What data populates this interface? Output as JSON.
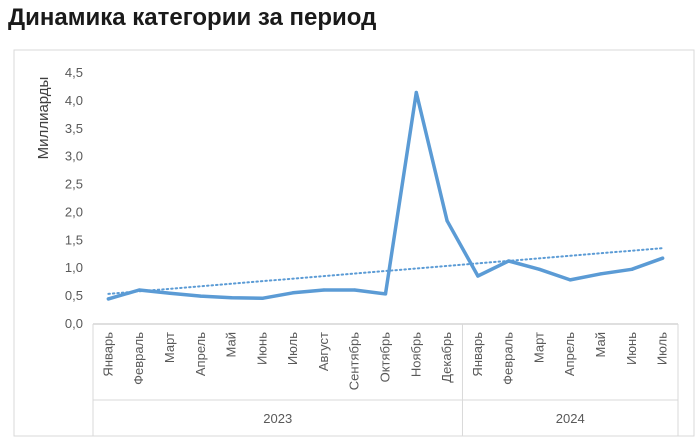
{
  "page": {
    "title": "Динамика категории за период"
  },
  "chart_data": {
    "type": "line",
    "title": "Динамика категории за период",
    "ylabel": "Миллиарды",
    "xlabel": "",
    "ylim": [
      0,
      4.5
    ],
    "ytick_step": 0.5,
    "ytick_labels": [
      "0,0",
      "0,5",
      "1,0",
      "1,5",
      "2,0",
      "2,5",
      "3,0",
      "3,5",
      "4,0",
      "4,5"
    ],
    "grid": false,
    "legend": "none",
    "groups": [
      {
        "label": "2023",
        "categories": [
          "Январь",
          "Февраль",
          "Март",
          "Апрель",
          "Май",
          "Июнь",
          "Июль",
          "Август",
          "Сентябрь",
          "Октябрь",
          "Ноябрь",
          "Декабрь"
        ]
      },
      {
        "label": "2024",
        "categories": [
          "Январь",
          "Февраль",
          "Март",
          "Апрель",
          "Май",
          "Июнь",
          "Июль"
        ]
      }
    ],
    "categories": [
      "Январь",
      "Февраль",
      "Март",
      "Апрель",
      "Май",
      "Июнь",
      "Июль",
      "Август",
      "Сентябрь",
      "Октябрь",
      "Ноябрь",
      "Декабрь",
      "Январь",
      "Февраль",
      "Март",
      "Апрель",
      "Май",
      "Июнь",
      "Июль"
    ],
    "series": [
      {
        "values": [
          0.45,
          0.61,
          0.55,
          0.5,
          0.47,
          0.46,
          0.56,
          0.61,
          0.61,
          0.54,
          4.15,
          1.85,
          0.86,
          1.13,
          0.98,
          0.79,
          0.9,
          0.98,
          1.18
        ],
        "color": "#5b9bd5"
      }
    ],
    "trendline": {
      "type": "linear",
      "start": 0.54,
      "end": 1.36,
      "color": "#5b9bd5",
      "style": "dotted"
    },
    "colors": {
      "axis": "#bfbfbf",
      "frame": "#d9d9d9",
      "text": "#595959"
    }
  }
}
